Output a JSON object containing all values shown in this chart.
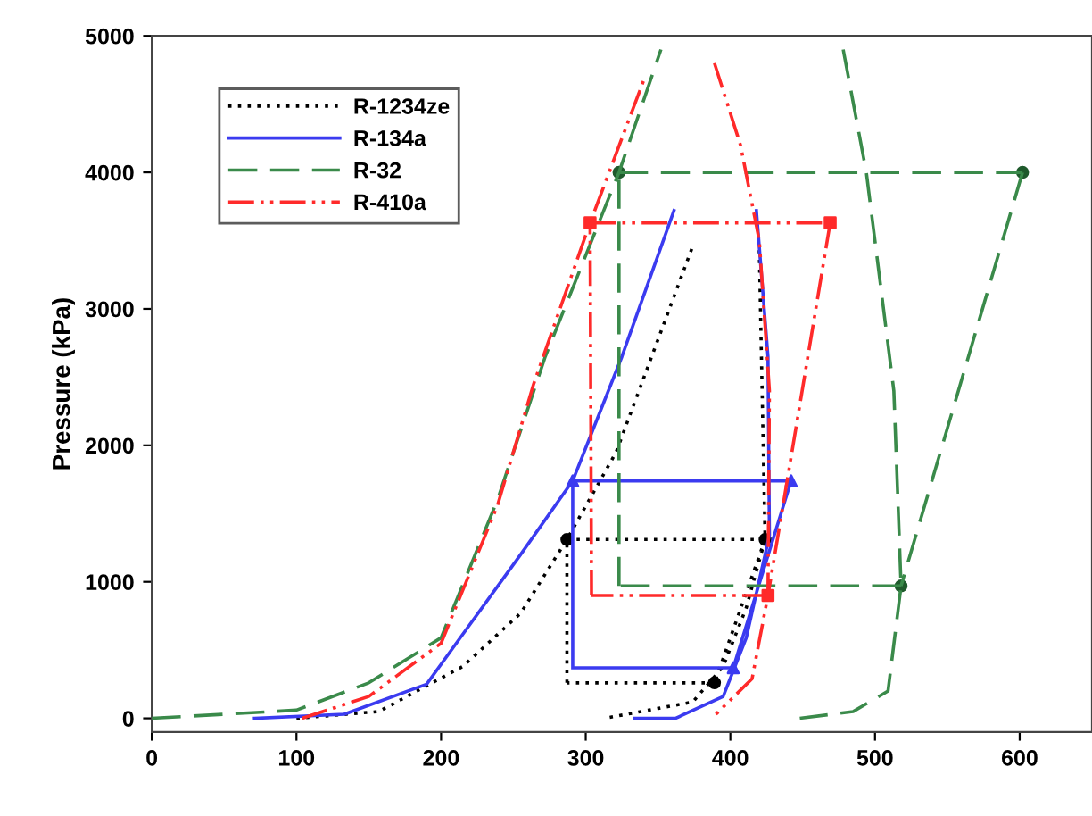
{
  "chart_data": {
    "type": "line",
    "ylabel": "Pressure (kPa)",
    "xlim": [
      0,
      650
    ],
    "ylim": [
      -100,
      5000
    ],
    "xticks": [
      0,
      100,
      200,
      300,
      400,
      500,
      600
    ],
    "yticks": [
      0,
      1000,
      2000,
      3000,
      4000,
      5000
    ],
    "grid": false,
    "legend": "top left",
    "series": [
      {
        "name": "R-1234ze",
        "color": "#000000",
        "line_style": "dotted",
        "x": [
          100,
          157,
          215,
          255,
          287,
          321,
          374,
          null,
          420,
          424,
          411,
          395,
          374,
          313,
          null,
          287,
          424,
          null,
          424,
          389,
          null,
          389,
          287,
          null,
          287,
          287
        ],
        "values": [
          0,
          50,
          380,
          770,
          1310,
          1950,
          3460,
          null,
          3430,
          1310,
          810,
          380,
          120,
          0,
          null,
          1310,
          1310,
          null,
          1310,
          260,
          null,
          260,
          260,
          null,
          260,
          1310
        ]
      },
      {
        "type": "scatter",
        "color": "#000000",
        "marker": "circle",
        "x": [
          287,
          424,
          389
        ],
        "values": [
          1310,
          1310,
          260
        ]
      },
      {
        "name": "R-134a",
        "color": "#3b3bf0",
        "line_style": "solid",
        "x": [
          71,
          133,
          190,
          255,
          291,
          325,
          361,
          null,
          418,
          426,
          427,
          411,
          395,
          362,
          334,
          null,
          291,
          442,
          null,
          442,
          402,
          null,
          402,
          291,
          null,
          291,
          291
        ],
        "values": [
          0,
          30,
          250,
          1200,
          1740,
          2650,
          3720,
          null,
          3720,
          2650,
          1340,
          590,
          160,
          0,
          0,
          null,
          1740,
          1740,
          null,
          1740,
          370,
          null,
          370,
          370,
          null,
          370,
          1740
        ]
      },
      {
        "type": "scatter",
        "color": "#3b3bf0",
        "marker": "triangle",
        "x": [
          291,
          442,
          402
        ],
        "values": [
          1740,
          1740,
          370
        ]
      },
      {
        "name": "R-32",
        "color": "#3a8a4a",
        "line_style": "dashed",
        "x": [
          0,
          100,
          150,
          200,
          239,
          272,
          323,
          352,
          null,
          478,
          494,
          513,
          518,
          509,
          485,
          448,
          null,
          323,
          602,
          null,
          602,
          518,
          null,
          518,
          323,
          null,
          323,
          323
        ],
        "values": [
          0,
          60,
          260,
          590,
          1600,
          2650,
          4000,
          4900,
          null,
          4900,
          4000,
          2400,
          970,
          200,
          50,
          0,
          null,
          4000,
          4000,
          null,
          4000,
          970,
          null,
          970,
          970,
          null,
          970,
          4000
        ]
      },
      {
        "type": "scatter",
        "color": "#1f5a2c",
        "marker": "circle",
        "x": [
          323,
          602,
          518
        ],
        "values": [
          4000,
          4000,
          970
        ]
      },
      {
        "name": "R-410a",
        "color": "#ff2a2a",
        "line_style": "dashdot",
        "x": [
          104,
          150,
          200,
          239,
          264,
          303,
          341,
          null,
          389,
          407,
          420,
          427,
          426,
          415,
          390,
          null,
          303,
          469,
          null,
          469,
          426,
          null,
          426,
          304,
          null,
          304,
          303
        ],
        "values": [
          0,
          160,
          550,
          1560,
          2450,
          3630,
          4700,
          null,
          4800,
          4200,
          3500,
          2400,
          900,
          290,
          30,
          null,
          3630,
          3630,
          null,
          3630,
          900,
          null,
          900,
          900,
          null,
          900,
          3630
        ]
      },
      {
        "type": "scatter",
        "color": "#ff2a2a",
        "marker": "square",
        "x": [
          303,
          469,
          426
        ],
        "values": [
          3630,
          3630,
          900
        ]
      }
    ]
  }
}
